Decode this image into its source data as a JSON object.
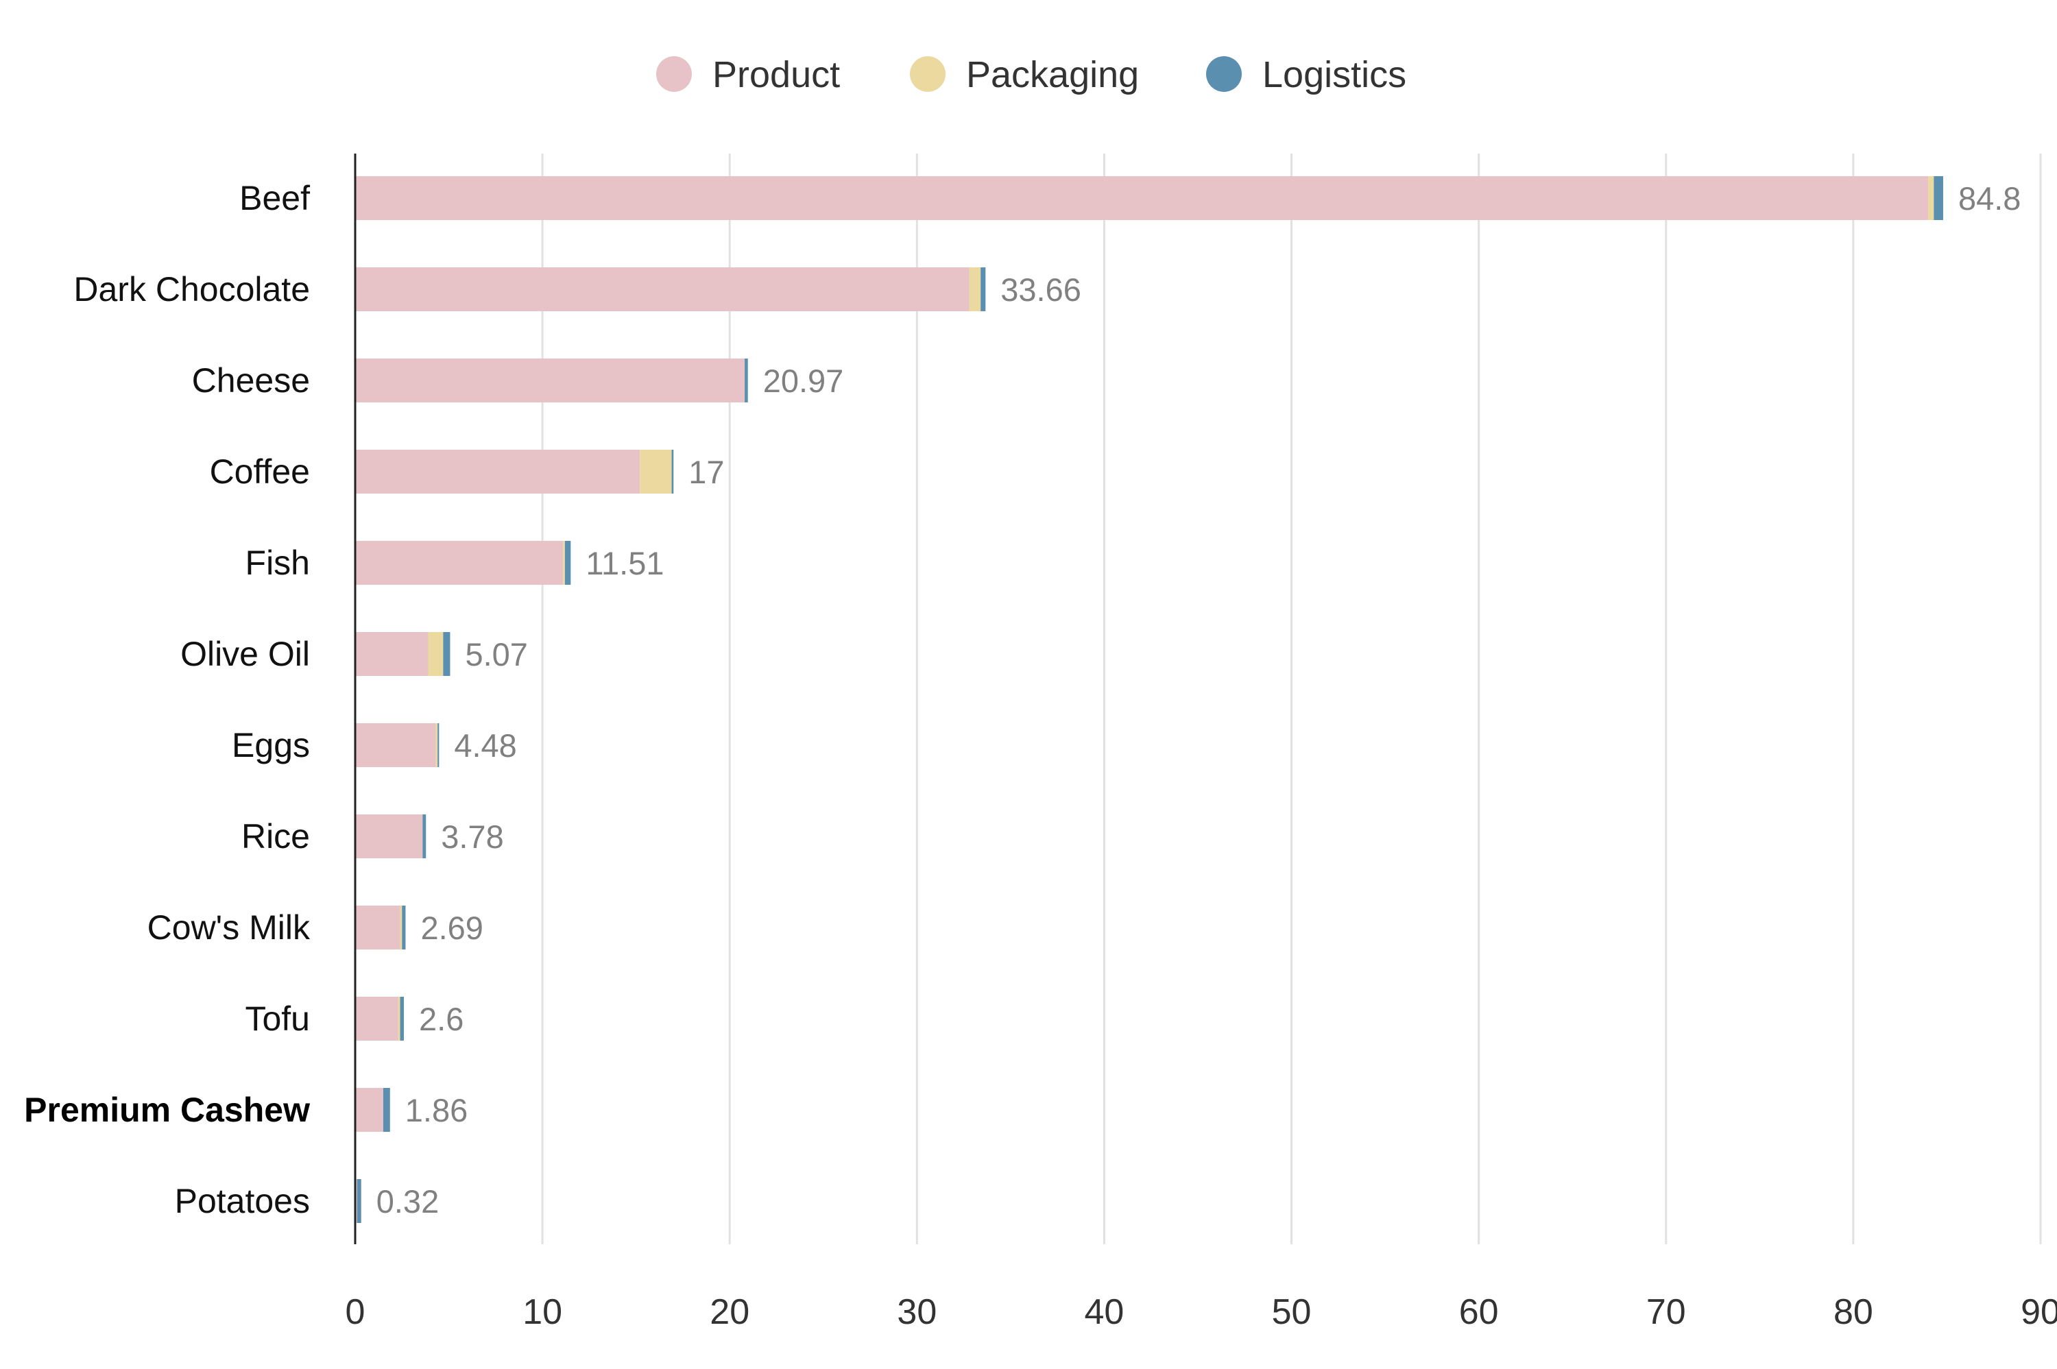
{
  "chart_data": {
    "type": "bar",
    "orientation": "horizontal",
    "stacked": true,
    "title": "",
    "xlabel": "",
    "ylabel": "",
    "xlim": [
      0,
      90
    ],
    "x_ticks": [
      0,
      10,
      20,
      30,
      40,
      50,
      60,
      70,
      80,
      90
    ],
    "grid": "vertical",
    "legend_position": "top-center",
    "categories": [
      "Beef",
      "Dark Chocolate",
      "Cheese",
      "Coffee",
      "Fish",
      "Olive Oil",
      "Eggs",
      "Rice",
      "Cow's Milk",
      "Tofu",
      "Premium Cashew",
      "Potatoes"
    ],
    "highlighted_category": "Premium Cashew",
    "series": [
      {
        "name": "Product",
        "color": "#e7c3c7",
        "values": [
          84.0,
          32.8,
          20.8,
          15.2,
          11.1,
          3.9,
          4.3,
          3.6,
          2.4,
          2.3,
          1.5,
          0.1
        ]
      },
      {
        "name": "Packaging",
        "color": "#ecd9a0",
        "values": [
          0.3,
          0.6,
          0.0,
          1.7,
          0.1,
          0.8,
          0.1,
          0.0,
          0.1,
          0.1,
          0.0,
          0.0
        ]
      },
      {
        "name": "Logistics",
        "color": "#5b8fb0",
        "values": [
          0.5,
          0.26,
          0.17,
          0.1,
          0.31,
          0.37,
          0.08,
          0.18,
          0.19,
          0.2,
          0.36,
          0.22
        ]
      }
    ],
    "totals": [
      "84.8",
      "33.66",
      "20.97",
      "17",
      "11.51",
      "5.07",
      "4.48",
      "3.78",
      "2.69",
      "2.6",
      "1.86",
      "0.32"
    ]
  }
}
